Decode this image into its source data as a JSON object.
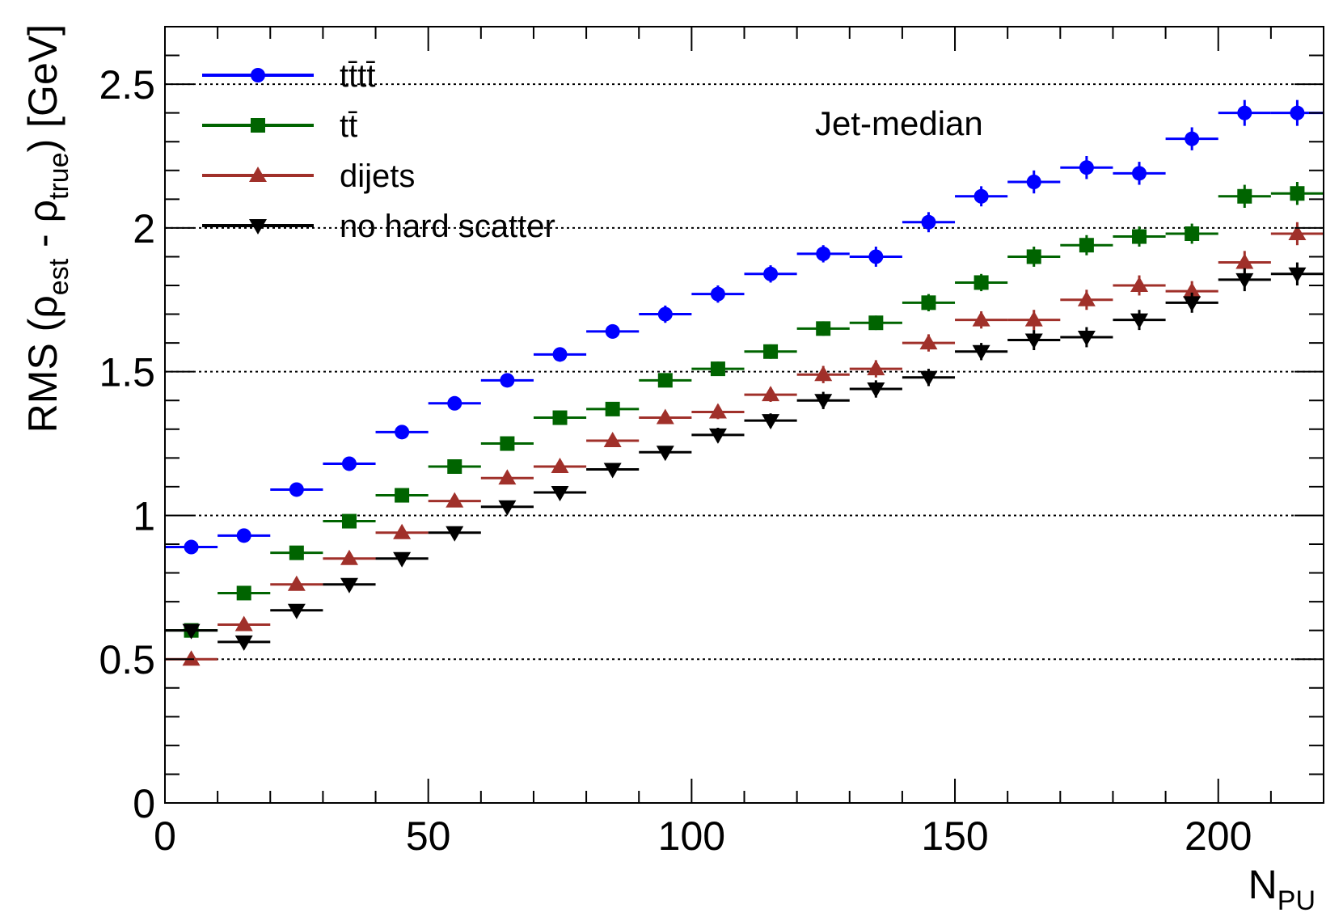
{
  "chart_data": {
    "type": "scatter",
    "annotation": "Jet-median",
    "xlabel": "N",
    "xlabel_sub": "PU",
    "ylabel": {
      "prefix": "RMS (ρ",
      "sub1": "est",
      "mid": " - ρ",
      "sub2": "true",
      "suffix": ") [GeV]"
    },
    "xlim": [
      0,
      220
    ],
    "ylim": [
      0,
      2.7
    ],
    "x_ticks": [
      {
        "value": 0,
        "label": "0"
      },
      {
        "value": 50,
        "label": "50"
      },
      {
        "value": 100,
        "label": "100"
      },
      {
        "value": 150,
        "label": "150"
      },
      {
        "value": 200,
        "label": "200"
      }
    ],
    "y_ticks": [
      {
        "value": 0,
        "label": "0"
      },
      {
        "value": 0.5,
        "label": "0.5"
      },
      {
        "value": 1,
        "label": "1"
      },
      {
        "value": 1.5,
        "label": "1.5"
      },
      {
        "value": 2,
        "label": "2"
      },
      {
        "value": 2.5,
        "label": "2.5"
      }
    ],
    "grid_y": [
      0.5,
      1,
      1.5,
      2,
      2.5
    ],
    "bin_width": 10,
    "x": [
      5,
      15,
      25,
      35,
      45,
      55,
      65,
      75,
      85,
      95,
      105,
      115,
      125,
      135,
      145,
      155,
      165,
      175,
      185,
      195,
      205,
      215
    ],
    "series": [
      {
        "name": "tt̄tt̄",
        "color": "#0000ff",
        "marker": "circle",
        "values": [
          0.89,
          0.93,
          1.09,
          1.18,
          1.29,
          1.39,
          1.47,
          1.56,
          1.64,
          1.7,
          1.77,
          1.84,
          1.91,
          1.9,
          2.02,
          2.11,
          2.16,
          2.21,
          2.19,
          2.31,
          2.4,
          2.4
        ],
        "errors": [
          0.01,
          0.01,
          0.015,
          0.015,
          0.015,
          0.02,
          0.02,
          0.025,
          0.025,
          0.03,
          0.03,
          0.03,
          0.03,
          0.035,
          0.035,
          0.035,
          0.04,
          0.04,
          0.04,
          0.04,
          0.045,
          0.045
        ]
      },
      {
        "name": "tt̄",
        "color": "#006400",
        "marker": "square",
        "values": [
          0.6,
          0.73,
          0.87,
          0.98,
          1.07,
          1.17,
          1.25,
          1.34,
          1.37,
          1.47,
          1.51,
          1.57,
          1.65,
          1.67,
          1.74,
          1.81,
          1.9,
          1.94,
          1.97,
          1.98,
          2.11,
          2.12
        ],
        "errors": [
          0.01,
          0.01,
          0.01,
          0.012,
          0.012,
          0.015,
          0.015,
          0.02,
          0.02,
          0.02,
          0.025,
          0.025,
          0.025,
          0.025,
          0.03,
          0.03,
          0.035,
          0.035,
          0.035,
          0.035,
          0.04,
          0.04
        ]
      },
      {
        "name": "dijets",
        "color": "#a0302a",
        "marker": "triangle-up",
        "values": [
          0.5,
          0.62,
          0.76,
          0.85,
          0.94,
          1.05,
          1.13,
          1.17,
          1.26,
          1.34,
          1.36,
          1.42,
          1.49,
          1.51,
          1.6,
          1.68,
          1.68,
          1.75,
          1.8,
          1.78,
          1.88,
          1.98
        ],
        "errors": [
          0.01,
          0.01,
          0.01,
          0.012,
          0.012,
          0.015,
          0.015,
          0.02,
          0.02,
          0.02,
          0.025,
          0.025,
          0.03,
          0.03,
          0.03,
          0.03,
          0.035,
          0.035,
          0.035,
          0.035,
          0.04,
          0.04
        ]
      },
      {
        "name": "no hard scatter",
        "color": "#000000",
        "marker": "triangle-down",
        "values": [
          0.6,
          0.56,
          0.67,
          0.76,
          0.85,
          0.94,
          1.03,
          1.08,
          1.16,
          1.22,
          1.28,
          1.33,
          1.4,
          1.44,
          1.48,
          1.57,
          1.61,
          1.62,
          1.68,
          1.74,
          1.82,
          1.84
        ],
        "errors": [
          0.01,
          0.01,
          0.01,
          0.012,
          0.012,
          0.015,
          0.015,
          0.02,
          0.02,
          0.02,
          0.025,
          0.025,
          0.03,
          0.03,
          0.03,
          0.03,
          0.035,
          0.035,
          0.035,
          0.035,
          0.04,
          0.04
        ]
      }
    ]
  }
}
